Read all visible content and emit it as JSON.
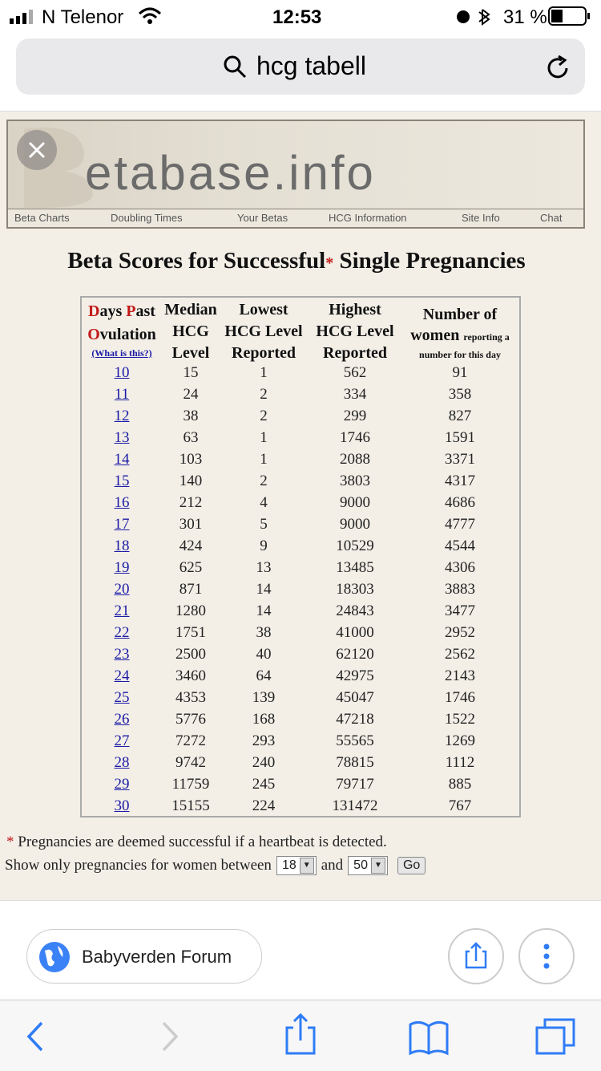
{
  "status": {
    "carrier": "N Telenor",
    "time": "12:53",
    "battery": "31 %"
  },
  "url": "hcg tabell",
  "logo": "etabase.info",
  "nav": [
    "Beta Charts",
    "Doubling Times",
    "Your Betas",
    "HCG Information",
    "Site Info",
    "Chat"
  ],
  "title": {
    "before": "Beta Scores for Successful",
    "star": "*",
    "after": " Single Pregnancies"
  },
  "table": {
    "headers": [
      [
        "Days Past",
        "Ovulation",
        "(What is this?)"
      ],
      [
        "Median",
        "HCG",
        "Level"
      ],
      [
        "Lowest",
        "HCG Level",
        "Reported"
      ],
      [
        "Highest",
        "HCG Level",
        "Reported"
      ],
      [
        "Number of",
        "women",
        "reporting a",
        "number for this day"
      ]
    ],
    "rows": [
      [
        "10",
        "15",
        "1",
        "562",
        "91"
      ],
      [
        "11",
        "24",
        "2",
        "334",
        "358"
      ],
      [
        "12",
        "38",
        "2",
        "299",
        "827"
      ],
      [
        "13",
        "63",
        "1",
        "1746",
        "1591"
      ],
      [
        "14",
        "103",
        "1",
        "2088",
        "3371"
      ],
      [
        "15",
        "140",
        "2",
        "3803",
        "4317"
      ],
      [
        "16",
        "212",
        "4",
        "9000",
        "4686"
      ],
      [
        "17",
        "301",
        "5",
        "9000",
        "4777"
      ],
      [
        "18",
        "424",
        "9",
        "10529",
        "4544"
      ],
      [
        "19",
        "625",
        "13",
        "13485",
        "4306"
      ],
      [
        "20",
        "871",
        "14",
        "18303",
        "3883"
      ],
      [
        "21",
        "1280",
        "14",
        "24843",
        "3477"
      ],
      [
        "22",
        "1751",
        "38",
        "41000",
        "2952"
      ],
      [
        "23",
        "2500",
        "40",
        "62120",
        "2562"
      ],
      [
        "24",
        "3460",
        "64",
        "42975",
        "2143"
      ],
      [
        "25",
        "4353",
        "139",
        "45047",
        "1746"
      ],
      [
        "26",
        "5776",
        "168",
        "47218",
        "1522"
      ],
      [
        "27",
        "7272",
        "293",
        "55565",
        "1269"
      ],
      [
        "28",
        "9742",
        "240",
        "78815",
        "1112"
      ],
      [
        "29",
        "11759",
        "245",
        "79717",
        "885"
      ],
      [
        "30",
        "15155",
        "224",
        "131472",
        "767"
      ]
    ]
  },
  "footnote": {
    "star": "*",
    "text": " Pregnancies are deemed successful if a heartbeat is detected."
  },
  "filter": {
    "label": "Show only pregnancies for women between",
    "from": "18",
    "and": "and",
    "to": "50",
    "button": "Go"
  },
  "bookmark": "Babyverden Forum"
}
